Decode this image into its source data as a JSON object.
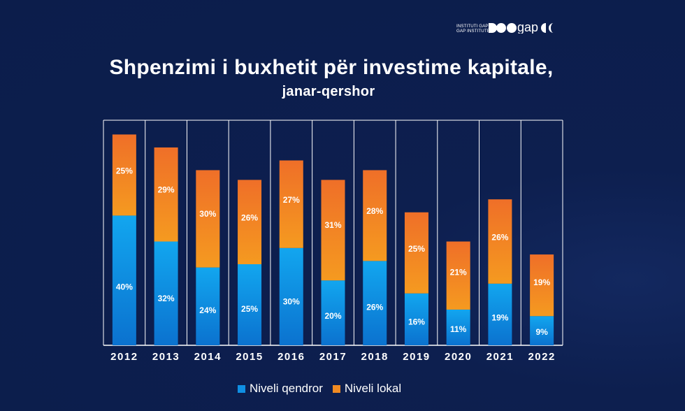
{
  "brand": {
    "caption_line1": "INSTITUTI GAP",
    "caption_line2": "GAP INSTITUTE",
    "logo_text": "gap"
  },
  "colors": {
    "background": "#0d1f4f",
    "central": "#0f8fe3",
    "local": "#f08a22"
  },
  "chart_data": {
    "type": "bar",
    "stacked": true,
    "title": "Shpenzimi i buxhetit për investime kapitale,",
    "subtitle": "janar-qershor",
    "categories": [
      "2012",
      "2013",
      "2014",
      "2015",
      "2016",
      "2017",
      "2018",
      "2019",
      "2020",
      "2021",
      "2022"
    ],
    "series": [
      {
        "name": "Niveli qendror",
        "values": [
          40,
          32,
          24,
          25,
          30,
          20,
          26,
          16,
          11,
          19,
          9
        ],
        "labels": [
          "40%",
          "32%",
          "24%",
          "25%",
          "30%",
          "20%",
          "26%",
          "16%",
          "11%",
          "19%",
          "9%"
        ]
      },
      {
        "name": "Niveli lokal",
        "values": [
          25,
          29,
          30,
          26,
          27,
          31,
          28,
          25,
          21,
          26,
          19
        ],
        "labels": [
          "25%",
          "29%",
          "30%",
          "26%",
          "27%",
          "31%",
          "28%",
          "25%",
          "21%",
          "26%",
          "19%"
        ]
      }
    ],
    "unit": "%",
    "ylim": [
      0,
      72
    ],
    "grid": false,
    "legend_position": "bottom"
  }
}
